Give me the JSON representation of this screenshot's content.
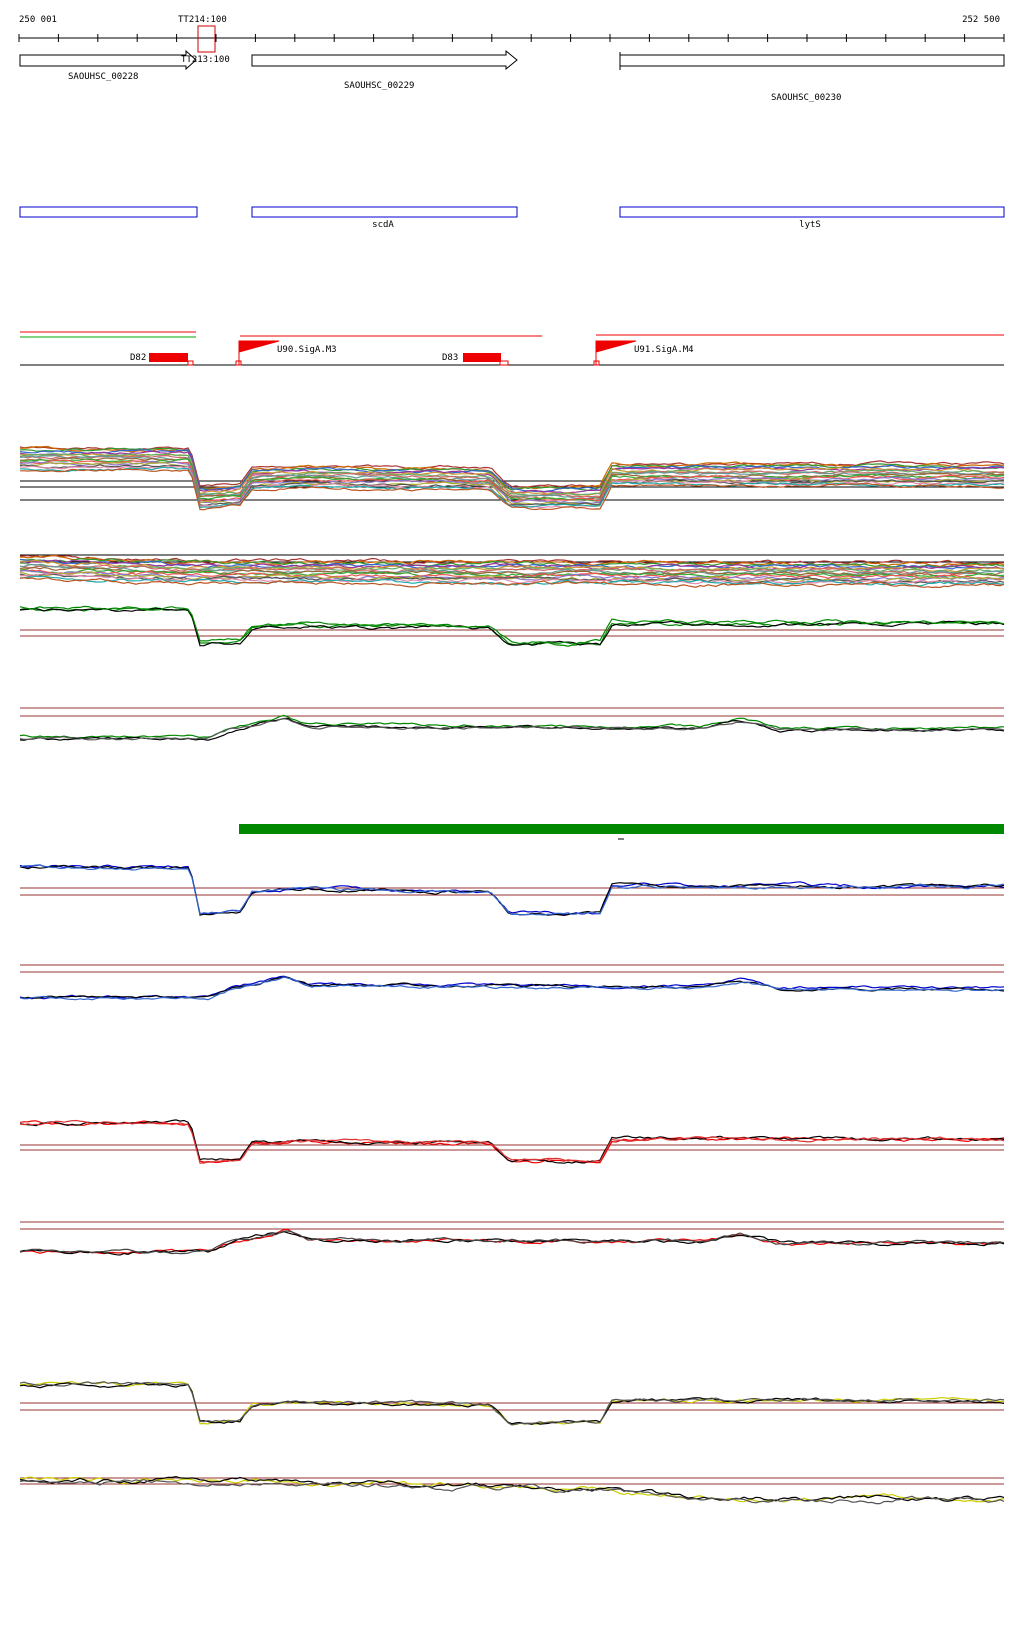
{
  "ruler": {
    "start": "250 001",
    "end": "252 500",
    "marker": "TT214:100"
  },
  "terminator": "TT213:100",
  "genes": [
    "SAOUHSC_00228",
    "SAOUHSC_00229",
    "SAOUHSC_00230"
  ],
  "gene_names": [
    "scdA",
    "lytS"
  ],
  "regulatory": [
    "D82",
    "U90.SigA.M3",
    "D83",
    "U91.SigA.M4"
  ]
}
